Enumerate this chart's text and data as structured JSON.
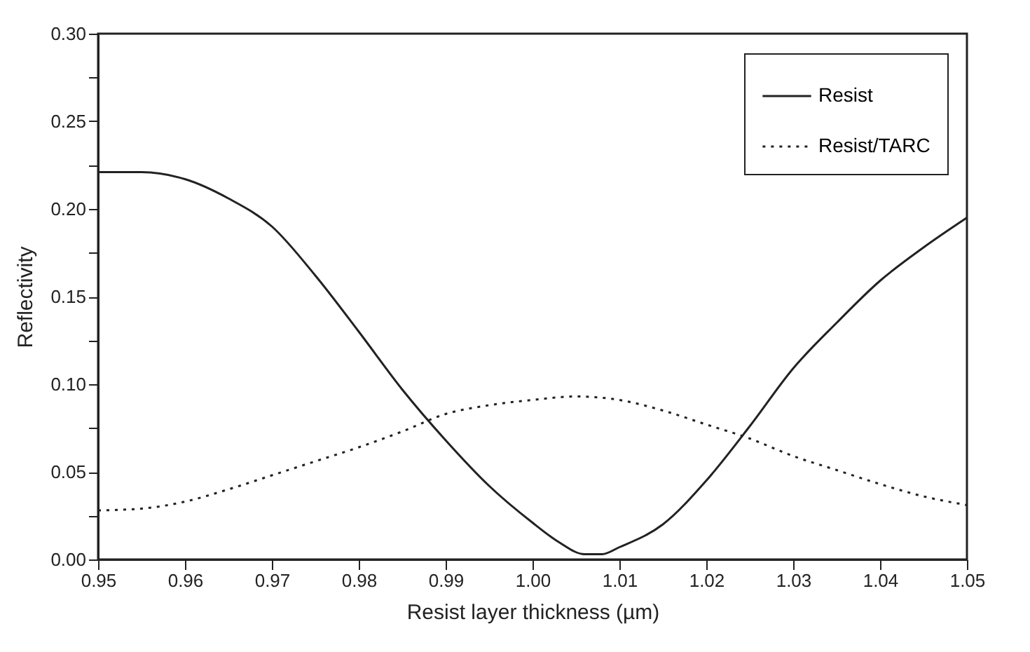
{
  "chart_data": {
    "type": "line",
    "xlabel": "Resist layer thickness (µm)",
    "ylabel": "Reflectivity",
    "xlim": [
      0.95,
      1.05
    ],
    "xticks": [
      {
        "value": 0.95,
        "label": "0.95"
      },
      {
        "value": 0.96,
        "label": "0.96"
      },
      {
        "value": 0.97,
        "label": "0.97"
      },
      {
        "value": 0.98,
        "label": "0.98"
      },
      {
        "value": 0.99,
        "label": "0.99"
      },
      {
        "value": 1.0,
        "label": "1.00"
      },
      {
        "value": 1.01,
        "label": "1.01"
      },
      {
        "value": 1.02,
        "label": "1.02"
      },
      {
        "value": 1.03,
        "label": "1.03"
      },
      {
        "value": 1.04,
        "label": "1.04"
      },
      {
        "value": 1.05,
        "label": "1.05"
      }
    ],
    "ylim": [
      0,
      0.3
    ],
    "yticks": [
      {
        "value": 0,
        "label": "0.00"
      },
      {
        "value": 0.025,
        "label": null
      },
      {
        "value": 0.05,
        "label": "0.05"
      },
      {
        "value": 0.075,
        "label": null
      },
      {
        "value": 0.1,
        "label": "0.10"
      },
      {
        "value": 0.125,
        "label": null
      },
      {
        "value": 0.15,
        "label": "0.15"
      },
      {
        "value": 0.175,
        "label": null
      },
      {
        "value": 0.2,
        "label": "0.20"
      },
      {
        "value": 0.225,
        "label": null
      },
      {
        "value": 0.25,
        "label": "0.25"
      },
      {
        "value": 0.275,
        "label": null
      },
      {
        "value": 0.3,
        "label": "0.30"
      }
    ],
    "grid": false,
    "legend": "top right",
    "marker": "none",
    "series": [
      {
        "name": "Resist",
        "color": "#222222",
        "line_style": "solid",
        "x": [
          0.95,
          0.955,
          0.96,
          0.965,
          0.97,
          0.975,
          0.98,
          0.985,
          0.99,
          0.995,
          1.0,
          1.003,
          1.006,
          1.008,
          1.01,
          1.015,
          1.02,
          1.025,
          1.03,
          1.035,
          1.04,
          1.045,
          1.05
        ],
        "values": [
          0.221,
          0.221,
          0.217,
          0.206,
          0.19,
          0.162,
          0.13,
          0.097,
          0.068,
          0.042,
          0.021,
          0.01,
          0.003,
          0.003,
          0.007,
          0.02,
          0.045,
          0.076,
          0.109,
          0.135,
          0.159,
          0.178,
          0.195
        ]
      },
      {
        "name": "Resist/TARC",
        "color": "#222222",
        "line_style": "dotted",
        "x": [
          0.95,
          0.955,
          0.96,
          0.965,
          0.97,
          0.975,
          0.98,
          0.985,
          0.99,
          0.995,
          1.0,
          1.005,
          1.01,
          1.015,
          1.02,
          1.025,
          1.03,
          1.035,
          1.04,
          1.045,
          1.05
        ],
        "values": [
          0.028,
          0.029,
          0.033,
          0.04,
          0.048,
          0.056,
          0.064,
          0.073,
          0.083,
          0.088,
          0.091,
          0.093,
          0.091,
          0.085,
          0.077,
          0.069,
          0.059,
          0.051,
          0.043,
          0.036,
          0.031
        ]
      }
    ]
  }
}
